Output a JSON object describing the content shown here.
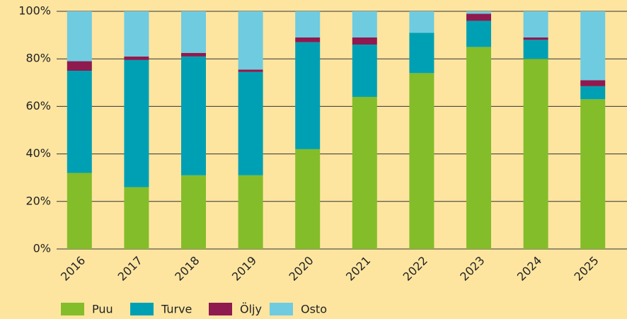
{
  "chart_data": {
    "type": "bar",
    "stacked": true,
    "categories": [
      "2016",
      "2017",
      "2018",
      "2019",
      "2020",
      "2021",
      "2022",
      "2023",
      "2024",
      "2025"
    ],
    "series": [
      {
        "name": "Puu",
        "color": "#84bd2a",
        "values": [
          32,
          26,
          31,
          31,
          42,
          64,
          74,
          85,
          80,
          63
        ]
      },
      {
        "name": "Turve",
        "color": "#00a0b4",
        "values": [
          43,
          53.5,
          50,
          43.5,
          45,
          22,
          17,
          11,
          8,
          5.5
        ]
      },
      {
        "name": "Öljy",
        "color": "#8e1a4f",
        "values": [
          4,
          1.5,
          1.5,
          1,
          2,
          3,
          0,
          3,
          1,
          2.5
        ]
      },
      {
        "name": "Osto",
        "color": "#6fcbe0",
        "values": [
          21,
          19,
          17.5,
          24.5,
          11,
          11,
          9,
          1,
          11,
          29
        ]
      }
    ],
    "ylim": [
      0,
      100
    ],
    "yticks": [
      {
        "value": 0,
        "label": "0%"
      },
      {
        "value": 20,
        "label": "20%"
      },
      {
        "value": 40,
        "label": "40%"
      },
      {
        "value": 60,
        "label": "60%"
      },
      {
        "value": 80,
        "label": "80%"
      },
      {
        "value": 100,
        "label": "100%"
      }
    ],
    "grid": true
  }
}
